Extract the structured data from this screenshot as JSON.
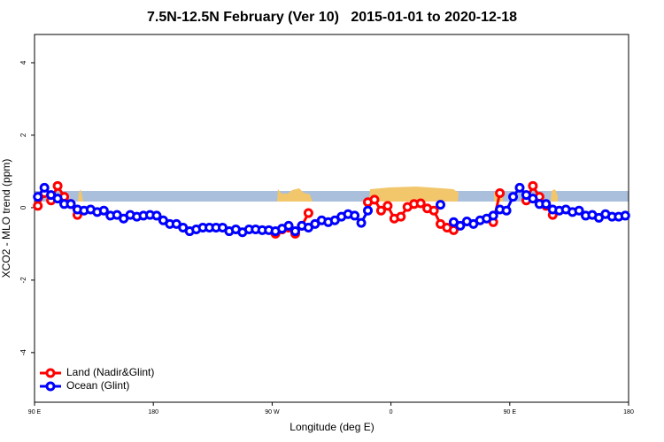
{
  "chart_data": {
    "type": "line",
    "title": "7.5N-12.5N February (Ver 10)   2015-01-01 to 2020-12-18",
    "x_label": "Longitude (deg E)",
    "y_label": "XCO2 - MLO trend (ppm)",
    "xlim": [
      90,
      540
    ],
    "xticks": [
      {
        "value": 90,
        "label": "90 E"
      },
      180,
      {
        "value": 270,
        "label": "90 W"
      },
      {
        "value": 360,
        "label": "0"
      },
      {
        "value": 450,
        "label": "90 E"
      },
      {
        "value": 540,
        "label": "180"
      }
    ],
    "ylim": [
      -5.37,
      4.78
    ],
    "yticks": [
      -4,
      -2,
      0,
      2,
      4
    ],
    "legend": "bottom-left",
    "x": [
      92.5,
      97.5,
      102.5,
      107.5,
      112.5,
      117.5,
      122.5,
      127.5,
      132.5,
      137.5,
      142.5,
      147.5,
      152.5,
      157.5,
      162.5,
      167.5,
      172.5,
      177.5,
      182.5,
      187.5,
      192.5,
      197.5,
      202.5,
      207.5,
      212.5,
      217.5,
      222.5,
      227.5,
      232.5,
      237.5,
      242.5,
      247.5,
      252.5,
      257.5,
      262.5,
      267.5,
      272.5,
      277.5,
      282.5,
      287.5,
      292.5,
      297.5,
      302.5,
      307.5,
      312.5,
      317.5,
      322.5,
      327.5,
      332.5,
      337.5,
      342.5,
      347.5,
      352.5,
      357.5,
      362.5,
      367.5,
      372.5,
      377.5,
      382.5,
      387.5,
      392.5,
      397.5,
      402.5,
      407.5,
      412.5,
      417.5,
      422.5,
      427.5,
      432.5,
      437.5,
      442.5,
      447.5,
      452.5,
      457.5,
      462.5,
      467.5,
      472.5,
      477.5,
      482.5,
      487.5,
      492.5,
      497.5,
      502.5,
      507.5,
      512.5,
      517.5,
      522.5,
      527.5,
      532.5,
      537.5
    ],
    "series": [
      {
        "name": "Land (Nadir&Glint)",
        "color": "#ff0000",
        "values": [
          0.05,
          0.4,
          0.2,
          0.6,
          0.3,
          0.1,
          -0.2,
          null,
          null,
          null,
          null,
          null,
          null,
          null,
          null,
          null,
          null,
          null,
          null,
          null,
          null,
          null,
          null,
          null,
          null,
          null,
          null,
          null,
          null,
          null,
          null,
          null,
          null,
          null,
          null,
          null,
          -0.72,
          -0.6,
          -0.55,
          -0.72,
          -0.5,
          -0.15,
          null,
          null,
          null,
          null,
          null,
          null,
          null,
          null,
          0.15,
          0.22,
          -0.08,
          0.05,
          -0.3,
          -0.25,
          0.02,
          0.1,
          0.12,
          -0.02,
          -0.08,
          -0.45,
          -0.55,
          -0.62,
          null,
          null,
          null,
          null,
          null,
          -0.4,
          0.4,
          null,
          null,
          null,
          0.2,
          0.6,
          0.3,
          0.05,
          -0.2,
          null,
          null,
          null,
          null,
          null,
          null,
          null,
          null,
          null,
          null,
          null
        ]
      },
      {
        "name": "Ocean (Glint)",
        "color": "#0000ff",
        "values": [
          0.3,
          0.55,
          0.35,
          0.25,
          0.1,
          0.1,
          -0.05,
          -0.08,
          -0.05,
          -0.12,
          -0.08,
          -0.22,
          -0.2,
          -0.3,
          -0.2,
          -0.25,
          -0.22,
          -0.2,
          -0.22,
          -0.35,
          -0.45,
          -0.45,
          -0.55,
          -0.65,
          -0.6,
          -0.55,
          -0.55,
          -0.55,
          -0.55,
          -0.65,
          -0.6,
          -0.68,
          -0.6,
          -0.6,
          -0.62,
          -0.62,
          -0.65,
          -0.58,
          -0.5,
          -0.65,
          -0.5,
          -0.55,
          -0.45,
          -0.35,
          -0.4,
          -0.35,
          -0.25,
          -0.18,
          -0.22,
          -0.42,
          -0.08,
          null,
          null,
          null,
          null,
          null,
          null,
          null,
          null,
          null,
          null,
          0.08,
          null,
          -0.4,
          -0.5,
          -0.38,
          -0.45,
          -0.35,
          -0.3,
          -0.22,
          -0.05,
          -0.08,
          0.3,
          0.55,
          0.35,
          0.25,
          0.1,
          0.1,
          -0.05,
          -0.08,
          -0.05,
          -0.12,
          -0.08,
          -0.22,
          -0.2,
          -0.28,
          -0.18,
          -0.25,
          -0.25,
          -0.22
        ]
      }
    ]
  }
}
